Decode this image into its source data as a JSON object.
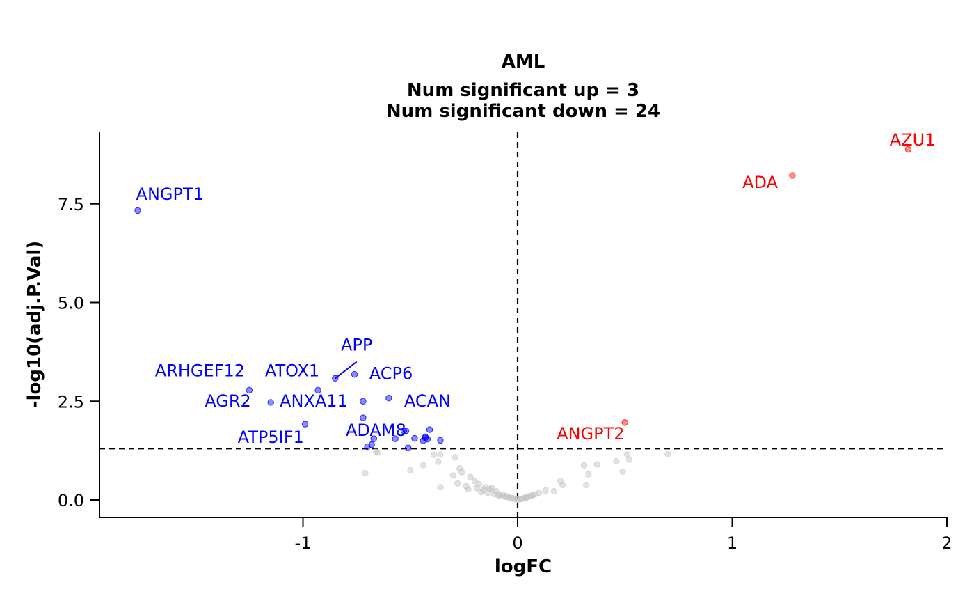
{
  "chart_data": {
    "type": "scatter",
    "title": "AML",
    "subtitle_lines": [
      "Num significant up = 3",
      "Num significant down = 24"
    ],
    "xlabel": "logFC",
    "ylabel": "-log10(adj.P.Val)",
    "xlim": [
      -1.95,
      2.0
    ],
    "ylim": [
      -0.45,
      9.3
    ],
    "x_ticks": [
      {
        "value": -1,
        "label": "-1"
      },
      {
        "value": 0,
        "label": "0"
      },
      {
        "value": 1,
        "label": "1"
      },
      {
        "value": 2,
        "label": "2"
      }
    ],
    "y_ticks": [
      {
        "value": 0,
        "label": "0.0"
      },
      {
        "value": 2.5,
        "label": "2.5"
      },
      {
        "value": 5,
        "label": "5.0"
      },
      {
        "value": 7.5,
        "label": "7.5"
      }
    ],
    "threshold_y": 1.3,
    "threshold_x": 0,
    "grid": false,
    "legend": "none",
    "colors": {
      "up": "#ff0000",
      "down": "#0000ff",
      "ns": "#bebebe"
    },
    "series": [
      {
        "group": "down",
        "points": [
          {
            "x": -1.77,
            "y": 7.33,
            "label": "ANGPT1"
          },
          {
            "x": -1.25,
            "y": 2.78,
            "label": "ARHGEF12"
          },
          {
            "x": -1.15,
            "y": 2.47,
            "label": "AGR2"
          },
          {
            "x": -0.99,
            "y": 1.92,
            "label": "ATP5IF1"
          },
          {
            "x": -0.93,
            "y": 2.78,
            "label": "ATOX1"
          },
          {
            "x": -0.85,
            "y": 3.08,
            "label": "APP"
          },
          {
            "x": -0.76,
            "y": 3.18,
            "label": ""
          },
          {
            "x": -0.72,
            "y": 2.5,
            "label": "ANXA11"
          },
          {
            "x": -0.72,
            "y": 2.08,
            "label": ""
          },
          {
            "x": -0.7,
            "y": 1.35,
            "label": ""
          },
          {
            "x": -0.68,
            "y": 1.4,
            "label": ""
          },
          {
            "x": -0.67,
            "y": 1.55,
            "label": "ADAM8"
          },
          {
            "x": -0.6,
            "y": 2.58,
            "label": "ACP6"
          },
          {
            "x": -0.57,
            "y": 1.55,
            "label": ""
          },
          {
            "x": -0.53,
            "y": 1.75,
            "label": ""
          },
          {
            "x": -0.52,
            "y": 1.75,
            "label": ""
          },
          {
            "x": -0.51,
            "y": 1.32,
            "label": ""
          },
          {
            "x": -0.48,
            "y": 1.56,
            "label": ""
          },
          {
            "x": -0.44,
            "y": 1.5,
            "label": ""
          },
          {
            "x": -0.43,
            "y": 1.57,
            "label": ""
          },
          {
            "x": -0.42,
            "y": 1.54,
            "label": ""
          },
          {
            "x": -0.41,
            "y": 1.78,
            "label": "ACAN"
          },
          {
            "x": -0.36,
            "y": 1.51,
            "label": ""
          },
          {
            "x": -0.43,
            "y": 1.6,
            "label": ""
          }
        ]
      },
      {
        "group": "up",
        "points": [
          {
            "x": 1.82,
            "y": 8.88,
            "label": "AZU1"
          },
          {
            "x": 1.28,
            "y": 8.22,
            "label": "ADA"
          },
          {
            "x": 0.5,
            "y": 1.96,
            "label": "ANGPT2"
          }
        ]
      },
      {
        "group": "ns",
        "points": [
          {
            "x": -0.71,
            "y": 0.68
          },
          {
            "x": -0.66,
            "y": 1.22
          },
          {
            "x": -0.65,
            "y": 1.2
          },
          {
            "x": -0.5,
            "y": 0.75
          },
          {
            "x": -0.44,
            "y": 0.88
          },
          {
            "x": -0.39,
            "y": 1.14
          },
          {
            "x": -0.37,
            "y": 0.97
          },
          {
            "x": -0.36,
            "y": 1.15
          },
          {
            "x": -0.36,
            "y": 0.32
          },
          {
            "x": -0.3,
            "y": 0.62
          },
          {
            "x": -0.29,
            "y": 1.08
          },
          {
            "x": -0.28,
            "y": 0.42
          },
          {
            "x": -0.27,
            "y": 0.8
          },
          {
            "x": -0.26,
            "y": 0.7
          },
          {
            "x": -0.24,
            "y": 0.35
          },
          {
            "x": -0.22,
            "y": 0.58
          },
          {
            "x": -0.2,
            "y": 0.48
          },
          {
            "x": -0.19,
            "y": 0.3
          },
          {
            "x": -0.18,
            "y": 0.4
          },
          {
            "x": -0.16,
            "y": 0.25
          },
          {
            "x": -0.15,
            "y": 0.32
          },
          {
            "x": -0.14,
            "y": 0.18
          },
          {
            "x": -0.13,
            "y": 0.28
          },
          {
            "x": -0.12,
            "y": 0.3
          },
          {
            "x": -0.11,
            "y": 0.15
          },
          {
            "x": -0.1,
            "y": 0.22
          },
          {
            "x": -0.09,
            "y": 0.12
          },
          {
            "x": -0.08,
            "y": 0.1
          },
          {
            "x": -0.07,
            "y": 0.14
          },
          {
            "x": -0.06,
            "y": 0.08
          },
          {
            "x": -0.05,
            "y": 0.09
          },
          {
            "x": -0.04,
            "y": 0.06
          },
          {
            "x": -0.03,
            "y": 0.05
          },
          {
            "x": -0.02,
            "y": 0.04
          },
          {
            "x": -0.01,
            "y": 0.02
          },
          {
            "x": 0.0,
            "y": 0.01
          },
          {
            "x": 0.01,
            "y": 0.02
          },
          {
            "x": 0.02,
            "y": 0.03
          },
          {
            "x": 0.03,
            "y": 0.05
          },
          {
            "x": 0.04,
            "y": 0.06
          },
          {
            "x": 0.05,
            "y": 0.08
          },
          {
            "x": 0.06,
            "y": 0.1
          },
          {
            "x": 0.07,
            "y": 0.12
          },
          {
            "x": 0.08,
            "y": 0.14
          },
          {
            "x": 0.1,
            "y": 0.18
          },
          {
            "x": 0.13,
            "y": 0.24
          },
          {
            "x": 0.17,
            "y": 0.22
          },
          {
            "x": 0.2,
            "y": 0.48
          },
          {
            "x": 0.21,
            "y": 0.38
          },
          {
            "x": 0.31,
            "y": 0.88
          },
          {
            "x": 0.32,
            "y": 0.38
          },
          {
            "x": 0.33,
            "y": 0.65
          },
          {
            "x": 0.37,
            "y": 0.9
          },
          {
            "x": 0.46,
            "y": 0.98
          },
          {
            "x": 0.49,
            "y": 0.72
          },
          {
            "x": 0.51,
            "y": 1.15
          },
          {
            "x": 0.52,
            "y": 1.02
          },
          {
            "x": 0.7,
            "y": 1.16
          },
          {
            "x": -0.23,
            "y": 0.27
          },
          {
            "x": -0.17,
            "y": 0.2
          }
        ]
      }
    ],
    "labels": [
      {
        "text": "ANGPT1",
        "group": "down",
        "x": -1.62,
        "y": 7.6
      },
      {
        "text": "ARHGEF12",
        "group": "down",
        "x": -1.48,
        "y": 3.13
      },
      {
        "text": "ATOX1",
        "group": "down",
        "x": -1.05,
        "y": 3.13
      },
      {
        "text": "APP",
        "group": "down",
        "x": -0.75,
        "y": 3.78
      },
      {
        "text": "ACP6",
        "group": "down",
        "x": -0.59,
        "y": 3.06
      },
      {
        "text": "AGR2",
        "group": "down",
        "x": -1.35,
        "y": 2.36
      },
      {
        "text": "ANXA11",
        "group": "down",
        "x": -0.95,
        "y": 2.36
      },
      {
        "text": "ACAN",
        "group": "down",
        "x": -0.42,
        "y": 2.36
      },
      {
        "text": "ADAM8",
        "group": "down",
        "x": -0.66,
        "y": 1.62
      },
      {
        "text": "ATP5IF1",
        "group": "down",
        "x": -1.15,
        "y": 1.45
      },
      {
        "text": "AZU1",
        "group": "up",
        "x": 1.84,
        "y": 8.98
      },
      {
        "text": "ADA",
        "group": "up",
        "x": 1.13,
        "y": 7.9
      },
      {
        "text": "ANGPT2",
        "group": "up",
        "x": 0.34,
        "y": 1.53
      }
    ],
    "connectors": [
      {
        "x1": -0.85,
        "y1": 3.08,
        "x2": -0.75,
        "y2": 3.5
      }
    ]
  }
}
